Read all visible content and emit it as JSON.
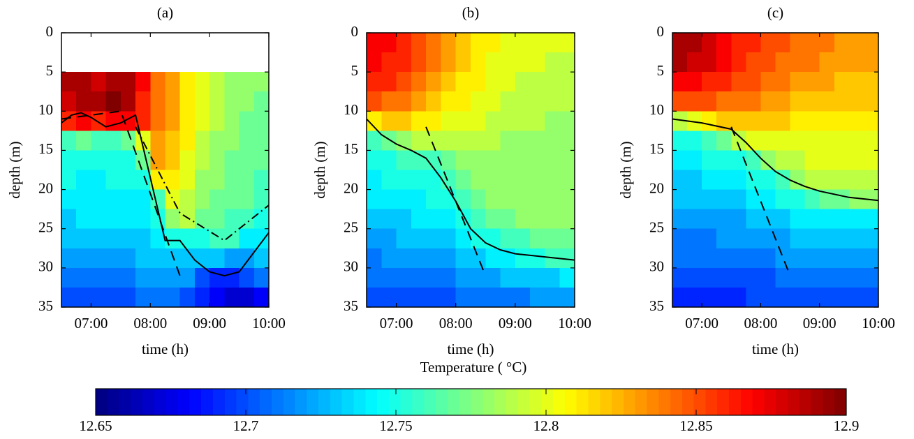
{
  "chart_data": [
    {
      "type": "heatmap",
      "title": "(a)",
      "xlabel": "time (h)",
      "ylabel": "depth (m)",
      "xlim": [
        6.5,
        10
      ],
      "ylim": [
        0,
        35
      ],
      "y_inverted": true,
      "xticks": [
        {
          "value": 7,
          "label": "07:00"
        },
        {
          "value": 8,
          "label": "08:00"
        },
        {
          "value": 9,
          "label": "09:00"
        },
        {
          "value": 10,
          "label": "10:00"
        }
      ],
      "yticks": [
        0,
        5,
        10,
        15,
        20,
        25,
        30,
        35
      ],
      "x_edges": [
        6.5,
        6.75,
        7,
        7.25,
        7.5,
        7.75,
        8,
        8.25,
        8.5,
        8.75,
        9,
        9.25,
        9.5,
        9.75,
        10
      ],
      "y_edges": [
        5,
        7.5,
        10,
        12.5,
        15,
        17.5,
        20,
        22.5,
        25,
        27.5,
        30,
        32.5,
        35
      ],
      "z": [
        [
          12.89,
          12.89,
          12.88,
          12.89,
          12.89,
          12.87,
          12.84,
          12.83,
          12.81,
          12.8,
          12.79,
          12.78,
          12.78,
          12.78
        ],
        [
          12.88,
          12.89,
          12.89,
          12.9,
          12.89,
          12.86,
          12.84,
          12.83,
          12.81,
          12.8,
          12.79,
          12.78,
          12.78,
          12.77
        ],
        [
          12.86,
          12.87,
          12.86,
          12.87,
          12.87,
          12.86,
          12.84,
          12.83,
          12.81,
          12.8,
          12.79,
          12.78,
          12.77,
          12.77
        ],
        [
          12.76,
          12.77,
          12.76,
          12.76,
          12.77,
          12.8,
          12.83,
          12.82,
          12.81,
          12.79,
          12.78,
          12.78,
          12.77,
          12.77
        ],
        [
          12.75,
          12.75,
          12.75,
          12.75,
          12.75,
          12.77,
          12.83,
          12.82,
          12.8,
          12.79,
          12.78,
          12.77,
          12.77,
          12.77
        ],
        [
          12.75,
          12.74,
          12.74,
          12.75,
          12.75,
          12.75,
          12.81,
          12.81,
          12.8,
          12.78,
          12.78,
          12.77,
          12.77,
          12.76
        ],
        [
          12.74,
          12.74,
          12.74,
          12.74,
          12.74,
          12.74,
          12.76,
          12.8,
          12.79,
          12.78,
          12.77,
          12.77,
          12.77,
          12.76
        ],
        [
          12.73,
          12.74,
          12.74,
          12.74,
          12.74,
          12.74,
          12.75,
          12.78,
          12.79,
          12.77,
          12.77,
          12.76,
          12.76,
          12.75
        ],
        [
          12.73,
          12.73,
          12.73,
          12.73,
          12.73,
          12.73,
          12.74,
          12.75,
          12.75,
          12.75,
          12.76,
          12.76,
          12.74,
          12.74
        ],
        [
          12.72,
          12.72,
          12.72,
          12.72,
          12.72,
          12.73,
          12.73,
          12.73,
          12.73,
          12.73,
          12.73,
          12.72,
          12.72,
          12.73
        ],
        [
          12.71,
          12.71,
          12.71,
          12.71,
          12.71,
          12.72,
          12.72,
          12.72,
          12.72,
          12.7,
          12.69,
          12.69,
          12.7,
          12.71
        ],
        [
          12.7,
          12.7,
          12.7,
          12.7,
          12.7,
          12.71,
          12.71,
          12.71,
          12.7,
          12.69,
          12.68,
          12.67,
          12.67,
          12.68
        ]
      ],
      "series": [
        {
          "color": "#000000",
          "dash": "solid",
          "x": [
            6.5,
            6.67,
            6.83,
            7.0,
            7.25,
            7.5,
            7.75,
            8.0,
            8.25,
            8.5,
            8.75,
            9.0,
            9.25,
            9.5,
            9.75,
            10
          ],
          "values": [
            11.5,
            10.5,
            10.2,
            10.8,
            12,
            11.5,
            10.5,
            18.5,
            26.5,
            26.5,
            29,
            30.5,
            31,
            30.5,
            28,
            25.5
          ]
        },
        {
          "color": "#000000",
          "dash": "dashed",
          "x": [
            6.5,
            7.0,
            7.5,
            8.5
          ],
          "values": [
            11,
            10.5,
            10,
            31
          ]
        },
        {
          "color": "#000000",
          "dash": "dashdot",
          "x": [
            7.75,
            8.5,
            9.25,
            10
          ],
          "values": [
            12,
            23,
            26.5,
            22
          ]
        }
      ]
    },
    {
      "type": "heatmap",
      "title": "(b)",
      "xlabel": "time (h)",
      "ylabel": "depth (m)",
      "xlim": [
        6.5,
        10
      ],
      "ylim": [
        0,
        35
      ],
      "y_inverted": true,
      "xticks": [
        {
          "value": 7,
          "label": "07:00"
        },
        {
          "value": 8,
          "label": "08:00"
        },
        {
          "value": 9,
          "label": "09:00"
        },
        {
          "value": 10,
          "label": "10:00"
        }
      ],
      "yticks": [
        0,
        5,
        10,
        15,
        20,
        25,
        30,
        35
      ],
      "x_edges": [
        6.5,
        6.75,
        7,
        7.25,
        7.5,
        7.75,
        8,
        8.25,
        8.5,
        8.75,
        9,
        9.25,
        9.5,
        9.75,
        10
      ],
      "y_edges": [
        0,
        2.5,
        5,
        7.5,
        10,
        12.5,
        15,
        17.5,
        20,
        22.5,
        25,
        27.5,
        30,
        32.5,
        35
      ],
      "z": [
        [
          12.87,
          12.87,
          12.86,
          12.85,
          12.84,
          12.83,
          12.82,
          12.81,
          12.81,
          12.8,
          12.8,
          12.8,
          12.8,
          12.8
        ],
        [
          12.87,
          12.86,
          12.86,
          12.85,
          12.84,
          12.83,
          12.82,
          12.81,
          12.8,
          12.8,
          12.8,
          12.8,
          12.79,
          12.79
        ],
        [
          12.86,
          12.86,
          12.85,
          12.84,
          12.83,
          12.82,
          12.81,
          12.81,
          12.8,
          12.8,
          12.79,
          12.79,
          12.79,
          12.79
        ],
        [
          12.85,
          12.84,
          12.84,
          12.83,
          12.82,
          12.81,
          12.81,
          12.8,
          12.8,
          12.79,
          12.79,
          12.79,
          12.79,
          12.79
        ],
        [
          12.81,
          12.82,
          12.82,
          12.81,
          12.81,
          12.8,
          12.8,
          12.8,
          12.79,
          12.79,
          12.79,
          12.79,
          12.78,
          12.78
        ],
        [
          12.76,
          12.77,
          12.78,
          12.79,
          12.79,
          12.79,
          12.79,
          12.79,
          12.79,
          12.78,
          12.78,
          12.78,
          12.78,
          12.78
        ],
        [
          12.75,
          12.75,
          12.76,
          12.76,
          12.76,
          12.77,
          12.78,
          12.78,
          12.78,
          12.78,
          12.78,
          12.78,
          12.78,
          12.78
        ],
        [
          12.74,
          12.75,
          12.75,
          12.75,
          12.75,
          12.76,
          12.77,
          12.78,
          12.78,
          12.78,
          12.78,
          12.78,
          12.78,
          12.78
        ],
        [
          12.74,
          12.74,
          12.74,
          12.74,
          12.75,
          12.75,
          12.76,
          12.77,
          12.78,
          12.78,
          12.78,
          12.78,
          12.78,
          12.78
        ],
        [
          12.73,
          12.73,
          12.73,
          12.74,
          12.74,
          12.74,
          12.75,
          12.76,
          12.77,
          12.77,
          12.78,
          12.78,
          12.78,
          12.78
        ],
        [
          12.72,
          12.72,
          12.73,
          12.73,
          12.73,
          12.73,
          12.74,
          12.75,
          12.75,
          12.76,
          12.76,
          12.77,
          12.77,
          12.77
        ],
        [
          12.71,
          12.72,
          12.72,
          12.72,
          12.72,
          12.72,
          12.73,
          12.73,
          12.74,
          12.74,
          12.75,
          12.75,
          12.76,
          12.76
        ],
        [
          12.71,
          12.71,
          12.71,
          12.71,
          12.71,
          12.71,
          12.72,
          12.72,
          12.72,
          12.73,
          12.73,
          12.73,
          12.73,
          12.74
        ],
        [
          12.7,
          12.7,
          12.7,
          12.7,
          12.7,
          12.7,
          12.71,
          12.71,
          12.71,
          12.71,
          12.71,
          12.72,
          12.72,
          12.72
        ]
      ],
      "series": [
        {
          "color": "#000000",
          "dash": "solid",
          "x": [
            6.5,
            6.75,
            7.0,
            7.25,
            7.5,
            7.75,
            8.0,
            8.25,
            8.5,
            8.75,
            9.0,
            9.5,
            10
          ],
          "values": [
            11,
            13,
            14.2,
            15,
            16,
            18.5,
            21.5,
            25,
            26.8,
            27.7,
            28.2,
            28.6,
            29
          ]
        },
        {
          "color": "#000000",
          "dash": "dashed",
          "x": [
            7.5,
            8.5
          ],
          "values": [
            12,
            31
          ]
        }
      ]
    },
    {
      "type": "heatmap",
      "title": "(c)",
      "xlabel": "time (h)",
      "ylabel": "depth (m)",
      "xlim": [
        6.5,
        10
      ],
      "ylim": [
        0,
        35
      ],
      "y_inverted": true,
      "xticks": [
        {
          "value": 7,
          "label": "07:00"
        },
        {
          "value": 8,
          "label": "08:00"
        },
        {
          "value": 9,
          "label": "09:00"
        },
        {
          "value": 10,
          "label": "10:00"
        }
      ],
      "yticks": [
        0,
        5,
        10,
        15,
        20,
        25,
        30,
        35
      ],
      "x_edges": [
        6.5,
        6.75,
        7,
        7.25,
        7.5,
        7.75,
        8,
        8.25,
        8.5,
        8.75,
        9,
        9.25,
        9.5,
        9.75,
        10
      ],
      "y_edges": [
        0,
        2.5,
        5,
        7.5,
        10,
        12.5,
        15,
        17.5,
        20,
        22.5,
        25,
        27.5,
        30,
        32.5,
        35
      ],
      "z": [
        [
          12.89,
          12.89,
          12.88,
          12.87,
          12.86,
          12.86,
          12.85,
          12.85,
          12.84,
          12.84,
          12.84,
          12.83,
          12.83,
          12.83
        ],
        [
          12.89,
          12.88,
          12.88,
          12.87,
          12.86,
          12.85,
          12.85,
          12.84,
          12.84,
          12.84,
          12.83,
          12.83,
          12.83,
          12.83
        ],
        [
          12.87,
          12.87,
          12.86,
          12.86,
          12.85,
          12.85,
          12.84,
          12.84,
          12.83,
          12.83,
          12.83,
          12.82,
          12.82,
          12.82
        ],
        [
          12.85,
          12.85,
          12.85,
          12.84,
          12.84,
          12.84,
          12.83,
          12.83,
          12.82,
          12.82,
          12.82,
          12.82,
          12.82,
          12.82
        ],
        [
          12.79,
          12.8,
          12.81,
          12.82,
          12.82,
          12.82,
          12.82,
          12.82,
          12.81,
          12.81,
          12.81,
          12.81,
          12.81,
          12.81
        ],
        [
          12.75,
          12.75,
          12.76,
          12.77,
          12.79,
          12.8,
          12.8,
          12.8,
          12.8,
          12.8,
          12.8,
          12.8,
          12.8,
          12.8
        ],
        [
          12.74,
          12.74,
          12.75,
          12.75,
          12.75,
          12.76,
          12.78,
          12.79,
          12.79,
          12.8,
          12.8,
          12.8,
          12.8,
          12.8
        ],
        [
          12.73,
          12.73,
          12.74,
          12.74,
          12.74,
          12.75,
          12.75,
          12.76,
          12.78,
          12.79,
          12.79,
          12.79,
          12.79,
          12.79
        ],
        [
          12.73,
          12.73,
          12.73,
          12.73,
          12.73,
          12.74,
          12.74,
          12.75,
          12.75,
          12.76,
          12.77,
          12.77,
          12.78,
          12.78
        ],
        [
          12.72,
          12.72,
          12.72,
          12.72,
          12.72,
          12.73,
          12.73,
          12.73,
          12.74,
          12.74,
          12.74,
          12.74,
          12.74,
          12.74
        ],
        [
          12.71,
          12.71,
          12.71,
          12.72,
          12.72,
          12.72,
          12.72,
          12.72,
          12.73,
          12.73,
          12.73,
          12.73,
          12.73,
          12.73
        ],
        [
          12.71,
          12.71,
          12.71,
          12.71,
          12.71,
          12.71,
          12.71,
          12.72,
          12.72,
          12.72,
          12.72,
          12.72,
          12.72,
          12.72
        ],
        [
          12.7,
          12.7,
          12.7,
          12.7,
          12.7,
          12.7,
          12.7,
          12.71,
          12.71,
          12.71,
          12.71,
          12.71,
          12.71,
          12.71
        ],
        [
          12.69,
          12.69,
          12.69,
          12.69,
          12.69,
          12.7,
          12.7,
          12.7,
          12.7,
          12.7,
          12.7,
          12.7,
          12.7,
          12.7
        ]
      ],
      "series": [
        {
          "color": "#000000",
          "dash": "solid",
          "x": [
            6.5,
            7.0,
            7.5,
            7.75,
            8.0,
            8.25,
            8.5,
            8.75,
            9.0,
            9.5,
            10
          ],
          "values": [
            11,
            11.5,
            12.3,
            14,
            16,
            17.7,
            18.8,
            19.6,
            20.2,
            21,
            21.4
          ]
        },
        {
          "color": "#000000",
          "dash": "dashed",
          "x": [
            7.5,
            8.5
          ],
          "values": [
            12,
            31
          ]
        }
      ]
    }
  ],
  "colorbar": {
    "title": "Temperature ( °C)",
    "colormap": "jet",
    "clim": [
      12.65,
      12.9
    ],
    "ticks": [
      12.65,
      12.7,
      12.75,
      12.8,
      12.85,
      12.9
    ]
  }
}
